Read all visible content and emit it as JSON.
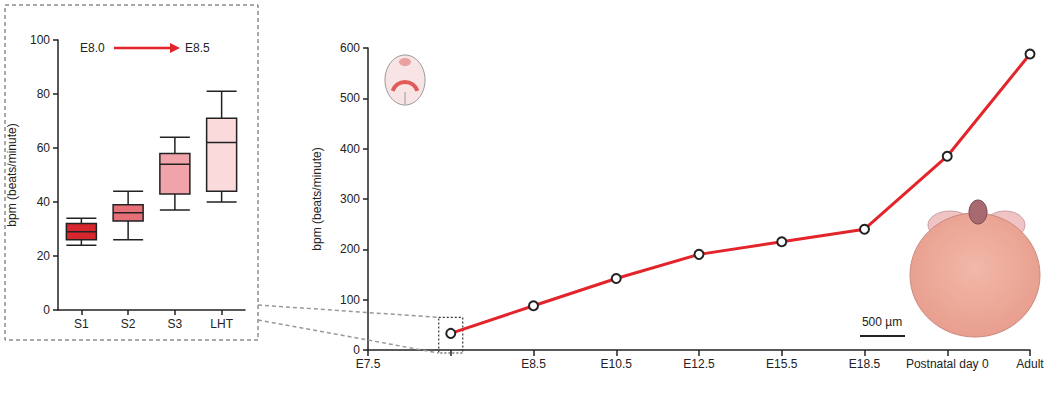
{
  "chart_data": [
    {
      "type": "boxplot",
      "categories": [
        "S1",
        "S2",
        "S3",
        "LHT"
      ],
      "values": [
        [
          24,
          26,
          29,
          32,
          34
        ],
        [
          26,
          33,
          36,
          39,
          44
        ],
        [
          37,
          43,
          54,
          58,
          64
        ],
        [
          40,
          44,
          62,
          71,
          81
        ]
      ],
      "colors": [
        "#d7262e",
        "#e66f78",
        "#f0a3a8",
        "#fadada"
      ],
      "y_label": "bpm (beats/minute)",
      "ylim": [
        0,
        100
      ],
      "yticks": [
        0,
        20,
        40,
        60,
        80,
        100
      ],
      "grid": false,
      "annotations": [
        "E8.0",
        "E8.5"
      ]
    },
    {
      "type": "line",
      "categories": [
        "E7.5",
        null,
        "E8.5",
        "E10.5",
        "E12.5",
        "E15.5",
        "E18.5",
        "Postnatal day 0",
        "Adult"
      ],
      "values": [
        null,
        33,
        88,
        142,
        190,
        215,
        240,
        385,
        588
      ],
      "color": "#e3242b",
      "marker": "circle",
      "y_label": "bpm (beats/minute)",
      "ylim": [
        0,
        600
      ],
      "yticks": [
        0,
        100,
        200,
        300,
        400,
        500,
        600
      ],
      "grid": false,
      "annotations": [
        "500 µm"
      ]
    }
  ]
}
